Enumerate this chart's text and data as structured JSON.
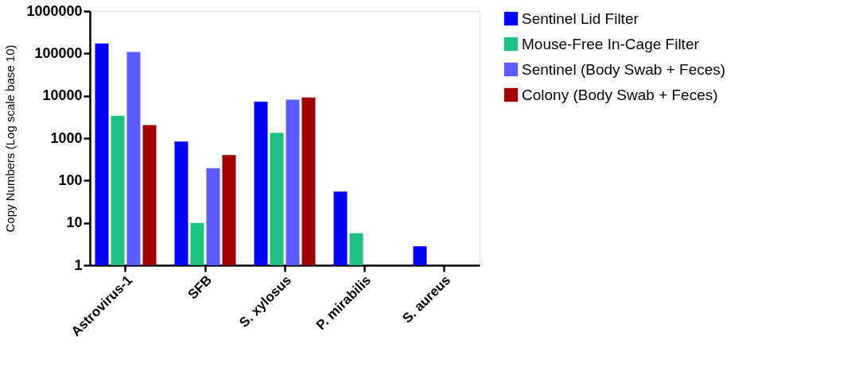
{
  "chart_data": {
    "type": "bar",
    "ylabel": "Copy Numbers (Log scale base 10)",
    "categories": [
      "Astrovirus-1",
      "SFB",
      "S. xylosus",
      "P. mirabilis",
      "S. aureus"
    ],
    "series": [
      {
        "name": "Sentinel Lid Filter",
        "color": "#0000ff",
        "values": [
          173000,
          830,
          7300,
          55,
          2.8
        ]
      },
      {
        "name": "Mouse-Free In-Cage Filter",
        "color": "#1fc084",
        "values": [
          3370,
          10,
          1340,
          5.7,
          null
        ]
      },
      {
        "name": "Sentinel (Body Swab + Feces)",
        "color": "#5b5bff",
        "values": [
          108000,
          195,
          8100,
          null,
          null
        ]
      },
      {
        "name": "Colony (Body Swab + Feces)",
        "color": "#a00000",
        "values": [
          2030,
          400,
          9100,
          null,
          null
        ]
      }
    ],
    "log": true,
    "ylim": [
      1,
      1000000
    ],
    "yticks": [
      1,
      10,
      100,
      1000,
      10000,
      100000,
      1000000
    ],
    "grid": false,
    "legend": "right"
  }
}
